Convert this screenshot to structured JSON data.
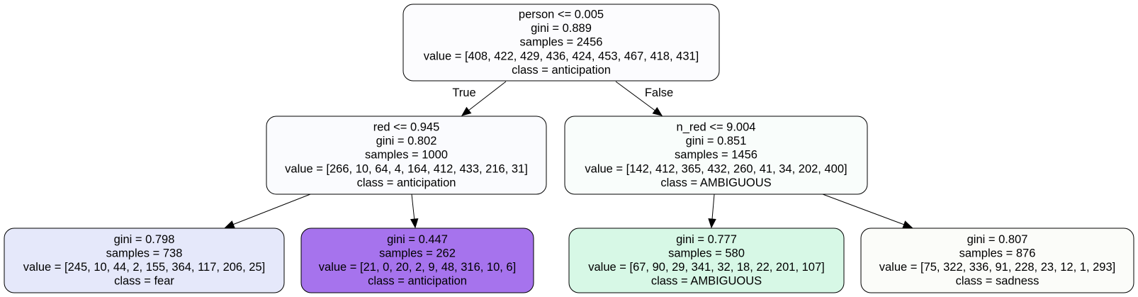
{
  "nodes": [
    {
      "id": "root",
      "fill": "#fcfcfe",
      "lines": [
        "person <= 0.005",
        "gini = 0.889",
        "samples = 2456",
        "value = [408, 422, 429, 436, 424, 453, 467, 418, 431]",
        "class = anticipation"
      ]
    },
    {
      "id": "left",
      "fill": "#fafbfe",
      "lines": [
        "red <= 0.945",
        "gini = 0.802",
        "samples = 1000",
        "value = [266, 10, 64, 4, 164, 412, 433, 216, 31]",
        "class = anticipation"
      ]
    },
    {
      "id": "right",
      "fill": "#f9fdfb",
      "lines": [
        "n_red <= 9.004",
        "gini = 0.851",
        "samples = 1456",
        "value = [142, 412, 365, 432, 260, 41, 34, 202, 400]",
        "class = AMBIGUOUS"
      ]
    },
    {
      "id": "ll",
      "fill": "#e5e8fa",
      "lines": [
        "gini = 0.798",
        "samples = 738",
        "value = [245, 10, 44, 2, 155, 364, 117, 206, 25]",
        "class = fear"
      ]
    },
    {
      "id": "lr",
      "fill": "#a673ed",
      "lines": [
        "gini = 0.447",
        "samples = 262",
        "value = [21, 0, 20, 2, 9, 48, 316, 10, 6]",
        "class = anticipation"
      ]
    },
    {
      "id": "rl",
      "fill": "#d7f8e6",
      "lines": [
        "gini = 0.777",
        "samples = 580",
        "value = [67, 90, 29, 341, 32, 18, 22, 201, 107]",
        "class = AMBIGUOUS"
      ]
    },
    {
      "id": "rr",
      "fill": "#fbfcf9",
      "lines": [
        "gini = 0.807",
        "samples = 876",
        "value = [75, 322, 336, 91, 228, 23, 12, 1, 293]",
        "class = sadness"
      ]
    }
  ],
  "edges": [
    {
      "from": "root",
      "to": "left",
      "label": "True"
    },
    {
      "from": "root",
      "to": "right",
      "label": "False"
    },
    {
      "from": "left",
      "to": "ll",
      "label": ""
    },
    {
      "from": "left",
      "to": "lr",
      "label": ""
    },
    {
      "from": "right",
      "to": "rl",
      "label": ""
    },
    {
      "from": "right",
      "to": "rr",
      "label": ""
    }
  ]
}
